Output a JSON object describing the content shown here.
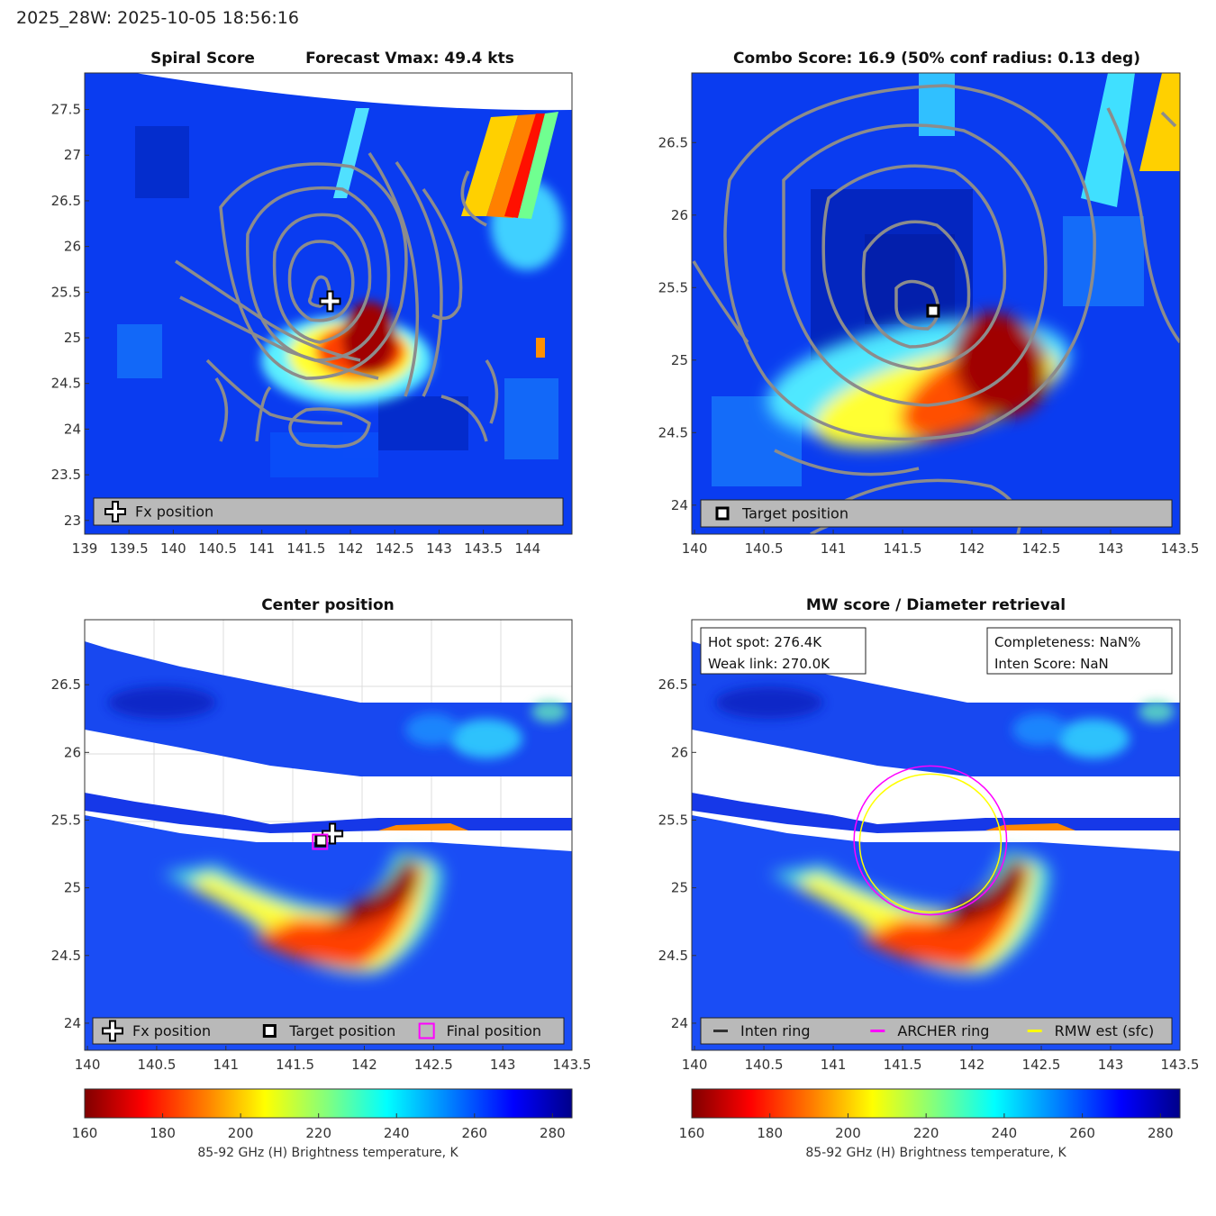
{
  "header": {
    "title": "2025_28W: 2025-10-05 18:56:16"
  },
  "colors": {
    "legend_bg": "#b9b9b9",
    "contour": "#8c8c8c",
    "archer": "#ff00ff",
    "rmw": "#ffff00",
    "inten": "#333333"
  },
  "colorbar": {
    "ticks": [
      "160",
      "180",
      "200",
      "220",
      "240",
      "260",
      "280"
    ],
    "label": "85-92 GHz (H) Brightness temperature, K",
    "range": [
      160,
      285
    ],
    "colormap": "jet_reversed"
  },
  "chart_data": [
    {
      "id": "spiral",
      "type": "heatmap",
      "title_left": "Spiral Score",
      "title_right": "Forecast Vmax: 49.4 kts",
      "xlim": [
        139,
        144.5
      ],
      "ylim": [
        22.85,
        27.9
      ],
      "xticks": [
        "139",
        "139.5",
        "140",
        "140.5",
        "141",
        "141.5",
        "142",
        "142.5",
        "143",
        "143.5",
        "144"
      ],
      "yticks": [
        "23",
        "23.5",
        "24",
        "24.5",
        "25",
        "25.5",
        "26",
        "26.5",
        "27",
        "27.5"
      ],
      "markers": [
        {
          "kind": "plus",
          "lon": 141.77,
          "lat": 25.4
        }
      ],
      "legend": [
        {
          "kind": "plus",
          "label": "Fx position"
        }
      ]
    },
    {
      "id": "combo",
      "type": "heatmap",
      "title": "Combo Score: 16.9  (50% conf radius: 0.13 deg)",
      "xlim": [
        139.98,
        143.5
      ],
      "ylim": [
        23.8,
        26.98
      ],
      "xticks": [
        "140",
        "140.5",
        "141",
        "141.5",
        "142",
        "142.5",
        "143",
        "143.5"
      ],
      "yticks": [
        "24",
        "24.5",
        "25",
        "25.5",
        "26",
        "26.5"
      ],
      "markers": [
        {
          "kind": "square",
          "lon": 141.72,
          "lat": 25.34
        }
      ],
      "legend": [
        {
          "kind": "square",
          "label": "Target position"
        }
      ]
    },
    {
      "id": "center",
      "type": "heatmap",
      "title": "Center position",
      "xlim": [
        139.98,
        143.5
      ],
      "ylim": [
        23.8,
        26.98
      ],
      "xticks": [
        "140",
        "140.5",
        "141",
        "141.5",
        "142",
        "142.5",
        "143",
        "143.5"
      ],
      "yticks": [
        "24",
        "24.5",
        "25",
        "25.5",
        "26",
        "26.5"
      ],
      "markers": [
        {
          "kind": "plus",
          "lon": 141.77,
          "lat": 25.4
        },
        {
          "kind": "square",
          "lon": 141.69,
          "lat": 25.35
        },
        {
          "kind": "final",
          "lon": 141.68,
          "lat": 25.34
        }
      ],
      "legend": [
        {
          "kind": "plus",
          "label": "Fx position"
        },
        {
          "kind": "square",
          "label": "Target position"
        },
        {
          "kind": "final",
          "label": "Final position"
        }
      ]
    },
    {
      "id": "mw",
      "type": "heatmap",
      "title": "MW score / Diameter retrieval",
      "xlim": [
        139.98,
        143.5
      ],
      "ylim": [
        23.8,
        26.98
      ],
      "xticks": [
        "140",
        "140.5",
        "141",
        "141.5",
        "142",
        "142.5",
        "143",
        "143.5"
      ],
      "yticks": [
        "24",
        "24.5",
        "25",
        "25.5",
        "26",
        "26.5"
      ],
      "markers": [],
      "legend": [
        {
          "kind": "line-dark",
          "label": "Inten ring"
        },
        {
          "kind": "line-magenta",
          "label": "ARCHER ring"
        },
        {
          "kind": "line-yellow",
          "label": "RMW est (sfc)"
        }
      ],
      "info_left": [
        "Hot spot: 276.4K",
        "Weak link: 270.0K"
      ],
      "info_right": [
        "Completeness: NaN%",
        "Inten Score: NaN"
      ],
      "rings": [
        {
          "name": "archer",
          "lon": 141.7,
          "lat": 25.35,
          "radius_deg": 0.55
        },
        {
          "name": "rmw",
          "lon": 141.7,
          "lat": 25.33,
          "radius_deg": 0.51
        }
      ]
    }
  ]
}
